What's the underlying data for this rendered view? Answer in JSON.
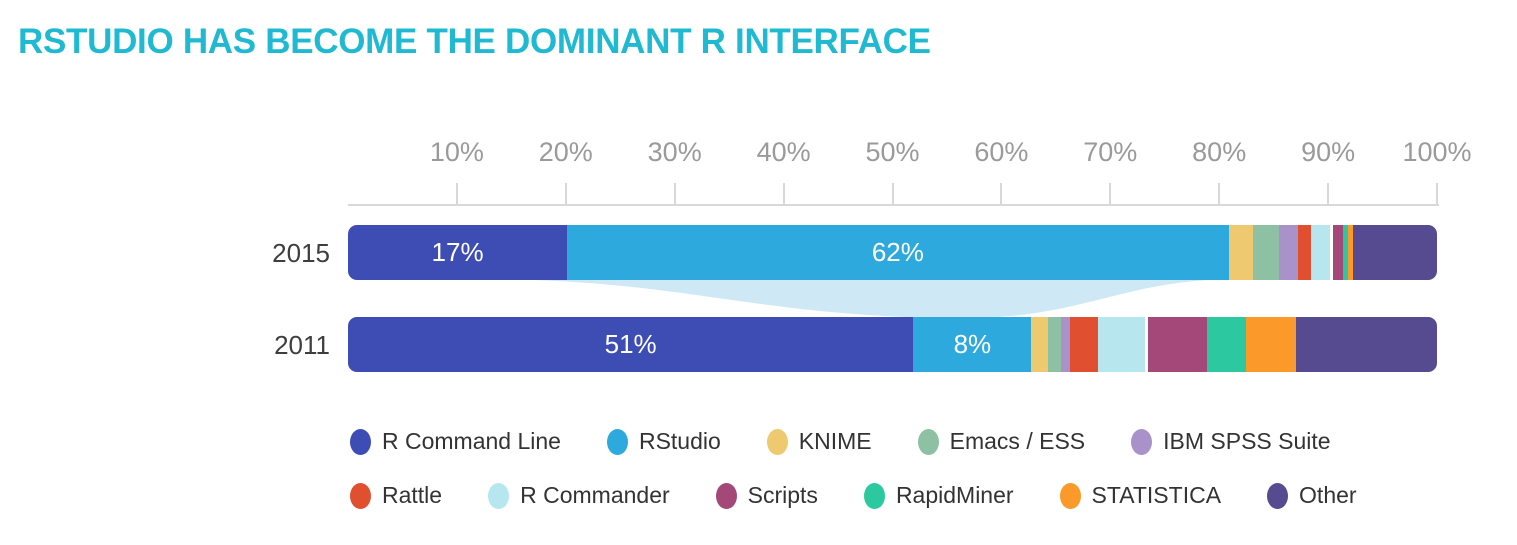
{
  "title": "RSTUDIO HAS BECOME THE DOMINANT R INTERFACE",
  "colors": {
    "title": "#1fb9d2",
    "axis_line": "#d8d8d8",
    "tick_text": "#9a9a9a",
    "year_text": "#3e3e3e",
    "legend_text": "#333333",
    "value_text": "#ffffff",
    "background": "#ffffff",
    "flow_band": "#cfe8f6"
  },
  "chart_data": {
    "type": "bar",
    "variant": "horizontal-stacked",
    "title": "RSTUDIO HAS BECOME THE DOMINANT R INTERFACE",
    "x_axis": {
      "range": [
        0,
        100
      ],
      "unit": "%",
      "tick_labels": [
        "10%",
        "20%",
        "30%",
        "40%",
        "50%",
        "60%",
        "70%",
        "80%",
        "90%",
        "100%"
      ],
      "grid": false
    },
    "categories": [
      "2015",
      "2011"
    ],
    "series": [
      {
        "name": "R Command Line",
        "color": "#3d4db4",
        "values": [
          17,
          51
        ],
        "labels": [
          "17%",
          "51%"
        ]
      },
      {
        "name": "RStudio",
        "color": "#2ea9dd",
        "values": [
          62,
          8
        ],
        "labels": [
          "62%",
          "8%"
        ]
      },
      {
        "name": "KNIME",
        "color": "#eec96f",
        "values": [
          2.5,
          1.6
        ]
      },
      {
        "name": "Emacs / ESS",
        "color": "#8ec0a4",
        "values": [
          2.6,
          1.3
        ]
      },
      {
        "name": "IBM SPSS Suite",
        "color": "#a991c9",
        "values": [
          2.0,
          0.9
        ]
      },
      {
        "name": "Rattle",
        "color": "#e04f30",
        "values": [
          1.3,
          2.8
        ]
      },
      {
        "name": "R Commander",
        "color": "#b7e6ee",
        "values": [
          1.9,
          4.7
        ]
      },
      {
        "name": "Scripts",
        "color": "#a34879",
        "values": [
          1.0,
          5.8
        ],
        "gap_before": true
      },
      {
        "name": "RapidMiner",
        "color": "#2cc9a0",
        "values": [
          0.5,
          3.9
        ]
      },
      {
        "name": "STATISTICA",
        "color": "#fb9a2b",
        "values": [
          0.6,
          5.0
        ]
      },
      {
        "name": "Other",
        "color": "#564a90",
        "values": [
          8.5,
          14.0
        ]
      }
    ],
    "flow": {
      "series": "RStudio",
      "from_category": "2015",
      "to_category": "2011",
      "color": "#cfe8f6"
    },
    "legend_position": "bottom",
    "legend_rows": [
      [
        "R Command Line",
        "RStudio",
        "KNIME",
        "Emacs / ESS",
        "IBM SPSS Suite"
      ],
      [
        "Rattle",
        "R Commander",
        "Scripts",
        "RapidMiner",
        "STATISTICA",
        "Other"
      ]
    ]
  }
}
